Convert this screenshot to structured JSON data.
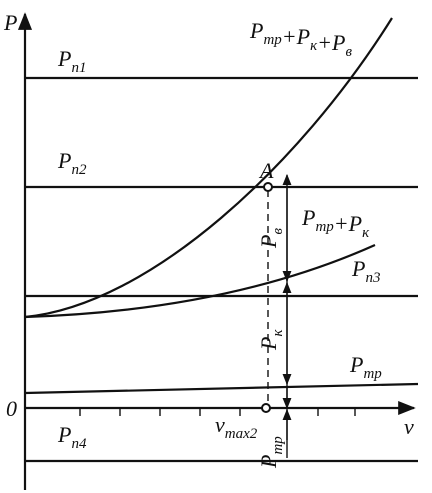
{
  "axes": {
    "y_label": "P",
    "x_label": "v",
    "origin": "0"
  },
  "levels": [
    {
      "base": "P",
      "sub": "п1"
    },
    {
      "base": "P",
      "sub": "п2"
    },
    {
      "base": "P",
      "sub": "п3"
    },
    {
      "base": "P",
      "sub": "п4"
    }
  ],
  "curves": {
    "total": {
      "terms": [
        {
          "base": "P",
          "sub": "тр"
        },
        {
          "base": "P",
          "sub": "к"
        },
        {
          "base": "P",
          "sub": "в"
        }
      ],
      "operator": "+"
    },
    "partial": {
      "terms": [
        {
          "base": "P",
          "sub": "тр"
        },
        {
          "base": "P",
          "sub": "к"
        }
      ],
      "operator": "+"
    },
    "friction": {
      "base": "P",
      "sub": "тр"
    }
  },
  "point": "A",
  "dimensions": [
    {
      "base": "P",
      "sub": "в"
    },
    {
      "base": "P",
      "sub": "к"
    },
    {
      "base": "P",
      "sub": "тр"
    }
  ],
  "speed": {
    "base": "v",
    "sub": "max2"
  }
}
